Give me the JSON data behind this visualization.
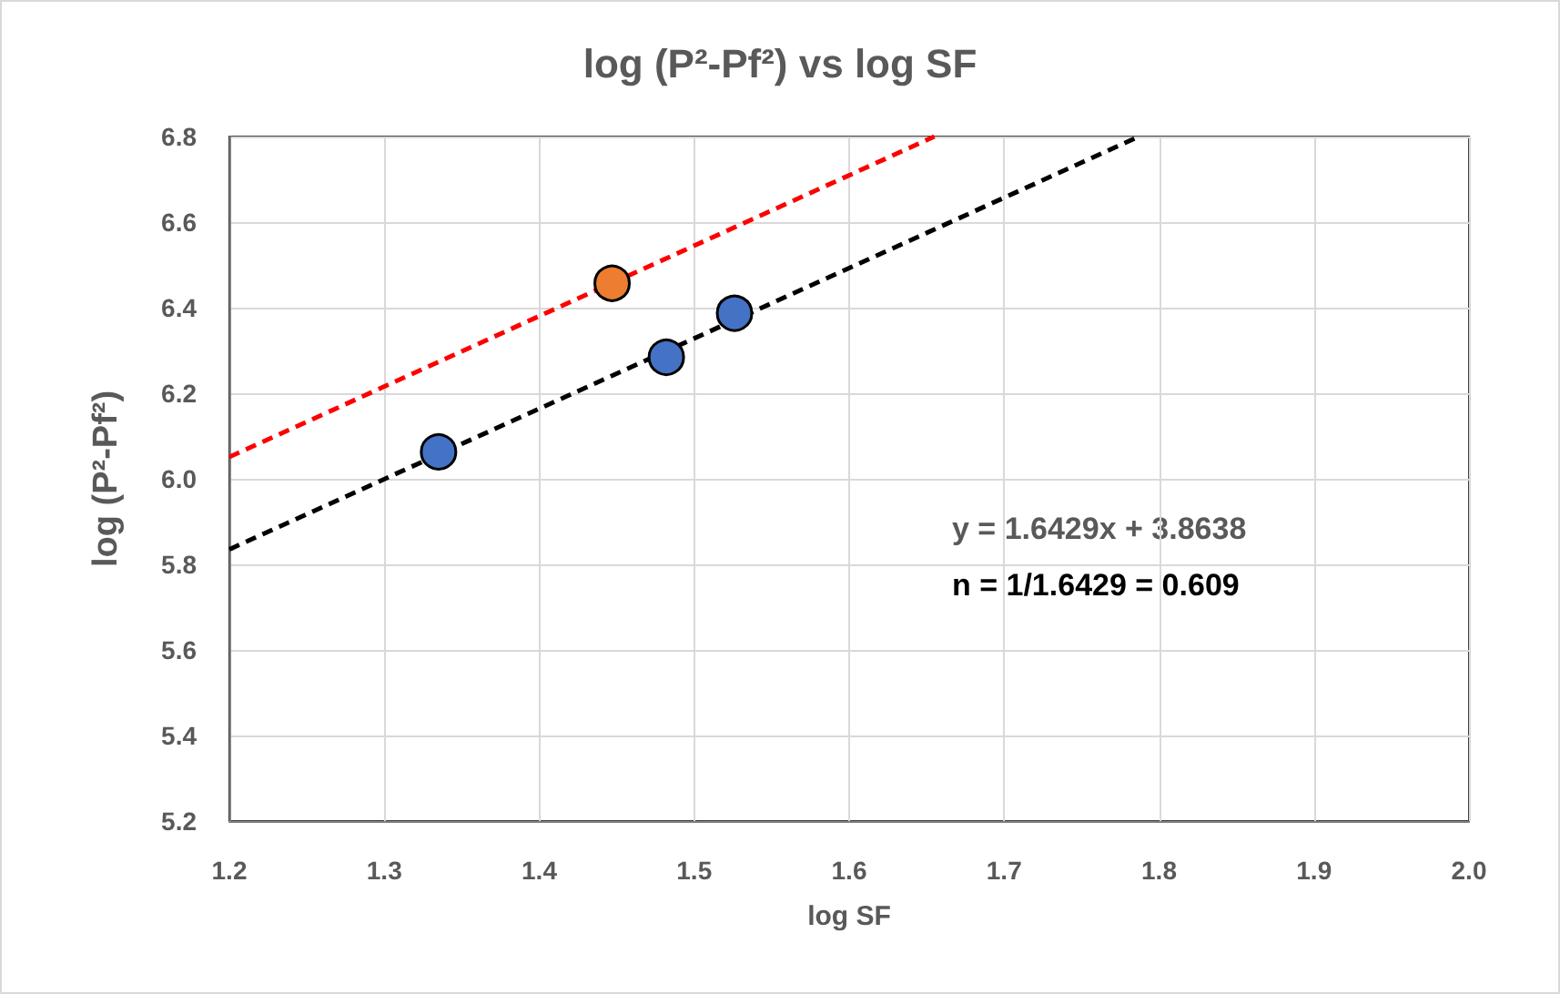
{
  "chart_data": {
    "type": "scatter",
    "title": "log (P²-Pf²) vs log SF",
    "xlabel": "log SF",
    "ylabel": "log (P²-Pf²)",
    "series": [
      {
        "color": "#4472c4",
        "x": [
          1.335,
          1.482,
          1.526
        ],
        "values": [
          6.063,
          6.284,
          6.387
        ]
      },
      {
        "color": "#ed7d31",
        "x": [
          1.447
        ],
        "values": [
          6.457
        ]
      },
      {
        "type": "line",
        "color": "#000000",
        "line_style": "dashed",
        "marker": "none",
        "x": [
          1.2,
          1.787
        ],
        "values": [
          5.835,
          6.8
        ]
      },
      {
        "type": "line",
        "color": "#ff0000",
        "line_style": "dashed",
        "marker": "none",
        "x": [
          1.2,
          1.655
        ],
        "values": [
          6.051,
          6.8
        ]
      }
    ],
    "marker": "circle",
    "xlim": [
      1.2,
      2.0
    ],
    "xticks": [
      {
        "value": 1.2,
        "label": "1.2"
      },
      1.3,
      1.4,
      1.5,
      1.6,
      1.7,
      1.8,
      1.9,
      {
        "value": 2.0,
        "label": "2.0"
      }
    ],
    "ylim": [
      5.2,
      6.8
    ],
    "yticks": [
      5.2,
      5.4,
      5.6,
      5.8,
      {
        "value": 6.0,
        "label": "6.0"
      },
      6.2,
      6.4,
      6.6,
      6.8
    ],
    "grid": true,
    "annotations": [
      "y = 1.6429x + 3.8638",
      "n = 1/1.6429 = 0.609"
    ]
  }
}
